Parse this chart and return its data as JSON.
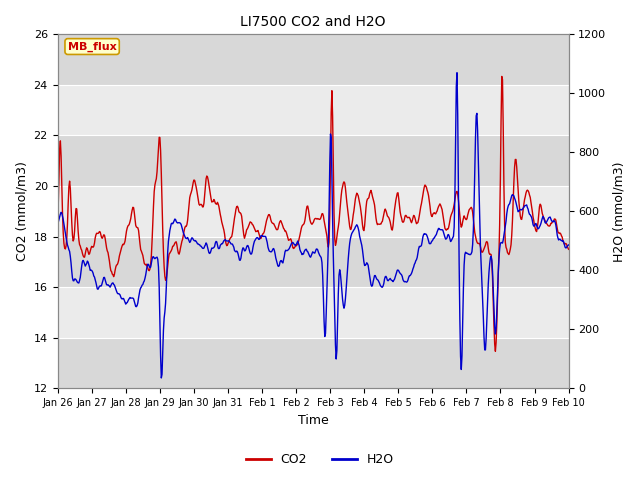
{
  "title": "LI7500 CO2 and H2O",
  "xlabel": "Time",
  "ylabel_left": "CO2 (mmol/m3)",
  "ylabel_right": "H2O (mmol/m3)",
  "ylim_left": [
    12,
    26
  ],
  "ylim_right": [
    0,
    1200
  ],
  "yticks_left": [
    12,
    14,
    16,
    18,
    20,
    22,
    24,
    26
  ],
  "yticks_right": [
    0,
    200,
    400,
    600,
    800,
    1000,
    1200
  ],
  "xtick_labels": [
    "Jan 26",
    "Jan 27",
    "Jan 28",
    "Jan 29",
    "Jan 30",
    "Jan 31",
    "Feb 1",
    "Feb 2",
    "Feb 3",
    "Feb 4",
    "Feb 5",
    "Feb 6",
    "Feb 7",
    "Feb 8",
    "Feb 9",
    "Feb 10"
  ],
  "co2_color": "#CC0000",
  "h2o_color": "#0000CC",
  "line_width": 1.0,
  "fig_bg_color": "#FFFFFF",
  "plot_bg_light": "#EBEBEB",
  "plot_bg_dark": "#D8D8D8",
  "grid_color": "#FFFFFF",
  "legend_label_co2": "CO2",
  "legend_label_h2o": "H2O",
  "watermark_text": "MB_flux",
  "watermark_bg": "#FFFFCC",
  "watermark_border": "#CC9900",
  "watermark_color": "#CC0000",
  "n_days": 15,
  "n_points": 720
}
